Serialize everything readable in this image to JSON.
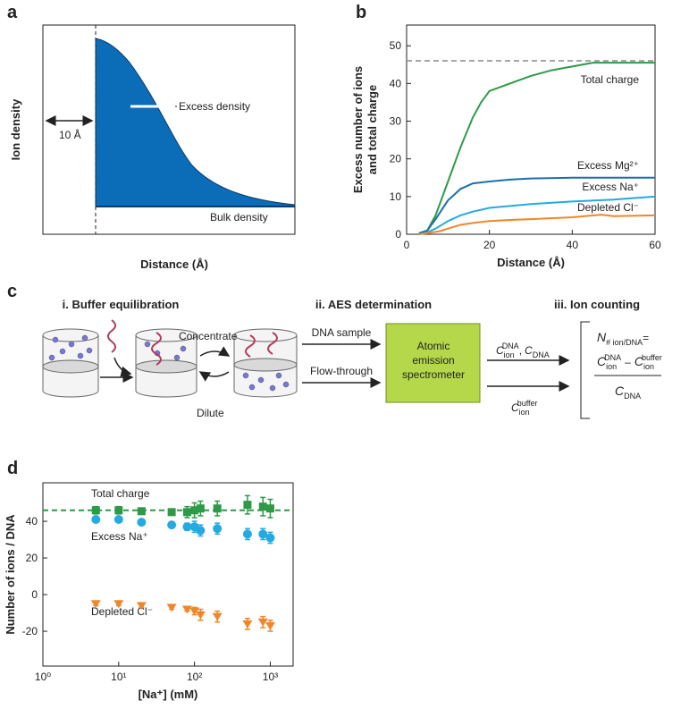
{
  "panel_a": {
    "label": "a",
    "ylabel": "Ion density",
    "xlabel": "Distance (Å)",
    "gap_label": "10 Å",
    "excess_label": "Excess density",
    "bulk_label": "Bulk density"
  },
  "chart_data": [
    {
      "type": "line",
      "label": "b",
      "xlabel": "Distance (Å)",
      "ylabel": [
        "Excess number of ions",
        "and total charge"
      ],
      "xlim": [
        0,
        60
      ],
      "ylim": [
        0,
        55.5
      ],
      "xticks": [
        0,
        20,
        40,
        60
      ],
      "yticks": [
        0,
        10,
        20,
        30,
        40,
        50
      ],
      "reference_line": 46,
      "series": [
        {
          "name": "Total charge",
          "color": "#2e9a47",
          "x": [
            3,
            5,
            7,
            10,
            13,
            16,
            18,
            20,
            25,
            30,
            35,
            40,
            45,
            50,
            55,
            60
          ],
          "values": [
            0.3,
            1,
            5,
            14,
            23,
            31,
            35,
            38,
            40,
            42,
            43.5,
            44.5,
            45.5,
            45.5,
            45.5,
            45.5
          ]
        },
        {
          "name": "Excess Mg²⁺",
          "color": "#1a6fad",
          "x": [
            3,
            5,
            7,
            10,
            13,
            16,
            20,
            25,
            30,
            40,
            50,
            60
          ],
          "values": [
            0.2,
            1,
            4,
            9,
            12,
            13.5,
            14,
            14.5,
            14.8,
            15,
            15,
            15
          ]
        },
        {
          "name": "Excess Na⁺",
          "color": "#23aae1",
          "x": [
            3,
            5,
            7,
            10,
            13,
            16,
            20,
            25,
            30,
            40,
            50,
            55,
            60
          ],
          "values": [
            0,
            0.5,
            1.5,
            3.5,
            5,
            6,
            7,
            7.5,
            8,
            8.7,
            9.2,
            9.6,
            10
          ]
        },
        {
          "name": "Depleted Cl⁻",
          "color": "#f0862a",
          "x": [
            3,
            5,
            8,
            10,
            13,
            16,
            20,
            25,
            30,
            40,
            47,
            50,
            60
          ],
          "values": [
            0,
            0.3,
            0.8,
            1.5,
            2.5,
            3,
            3.5,
            3.8,
            4,
            4.5,
            5.2,
            4.8,
            5
          ]
        }
      ]
    },
    {
      "type": "scatter",
      "label": "d",
      "xlabel": "[Na⁺] (mM)",
      "ylabel": "Number of ions / DNA",
      "log_x": true,
      "xlim": [
        1,
        2000
      ],
      "ylim": [
        -39,
        61
      ],
      "xticks": [
        {
          "value": 1,
          "label": "10⁰"
        },
        {
          "value": 10,
          "label": "10¹"
        },
        {
          "value": 100,
          "label": "10²"
        },
        {
          "value": 1000,
          "label": "10³"
        }
      ],
      "yticks": [
        -20,
        0,
        20,
        40
      ],
      "reference_line": 46,
      "series": [
        {
          "name": "Total charge",
          "color": "#2e9a47",
          "marker": "square",
          "x": [
            5,
            10,
            20,
            50,
            80,
            100,
            120,
            200,
            500,
            800,
            1000
          ],
          "values": [
            46,
            46,
            45.5,
            45,
            45,
            46,
            47,
            47,
            49,
            48,
            47
          ],
          "errors": [
            2,
            2,
            1,
            1,
            3,
            4,
            4,
            4,
            5,
            5,
            5
          ]
        },
        {
          "name": "Excess Na⁺",
          "color": "#23aae1",
          "marker": "circle",
          "x": [
            5,
            10,
            20,
            50,
            80,
            100,
            120,
            200,
            500,
            800,
            1000
          ],
          "values": [
            41,
            41,
            39.5,
            38,
            37,
            37,
            35,
            36,
            33,
            33,
            31
          ],
          "errors": [
            1,
            1,
            1,
            1,
            2,
            3,
            3,
            3,
            3,
            3,
            3
          ]
        },
        {
          "name": "Depleted Cl⁻",
          "color": "#f0862a",
          "marker": "triangle",
          "x": [
            5,
            10,
            20,
            50,
            80,
            100,
            120,
            200,
            500,
            800,
            1000
          ],
          "values": [
            -5,
            -5,
            -6,
            -7,
            -8,
            -9,
            -11,
            -12,
            -16,
            -15,
            -17
          ],
          "errors": [
            1,
            1,
            1,
            1,
            1,
            2,
            3,
            3,
            3,
            3,
            3
          ]
        }
      ]
    }
  ],
  "panel_c": {
    "label": "c",
    "step1": "i. Buffer equilibration",
    "step2": "ii. AES determination",
    "step3": "iii. Ion counting",
    "concentrate": "Concentrate",
    "dilute": "Dilute",
    "dna_sample": "DNA sample",
    "flow_through": "Flow-through",
    "instrument": [
      "Atomic",
      "emission",
      "spectrometer"
    ],
    "c": "C",
    "ion": "ion",
    "dna": "DNA",
    "buffer": "buffer",
    "comma": ",",
    "minus": "–",
    "n": "N",
    "n_sub": "# ion/DNA",
    "eq": "="
  }
}
